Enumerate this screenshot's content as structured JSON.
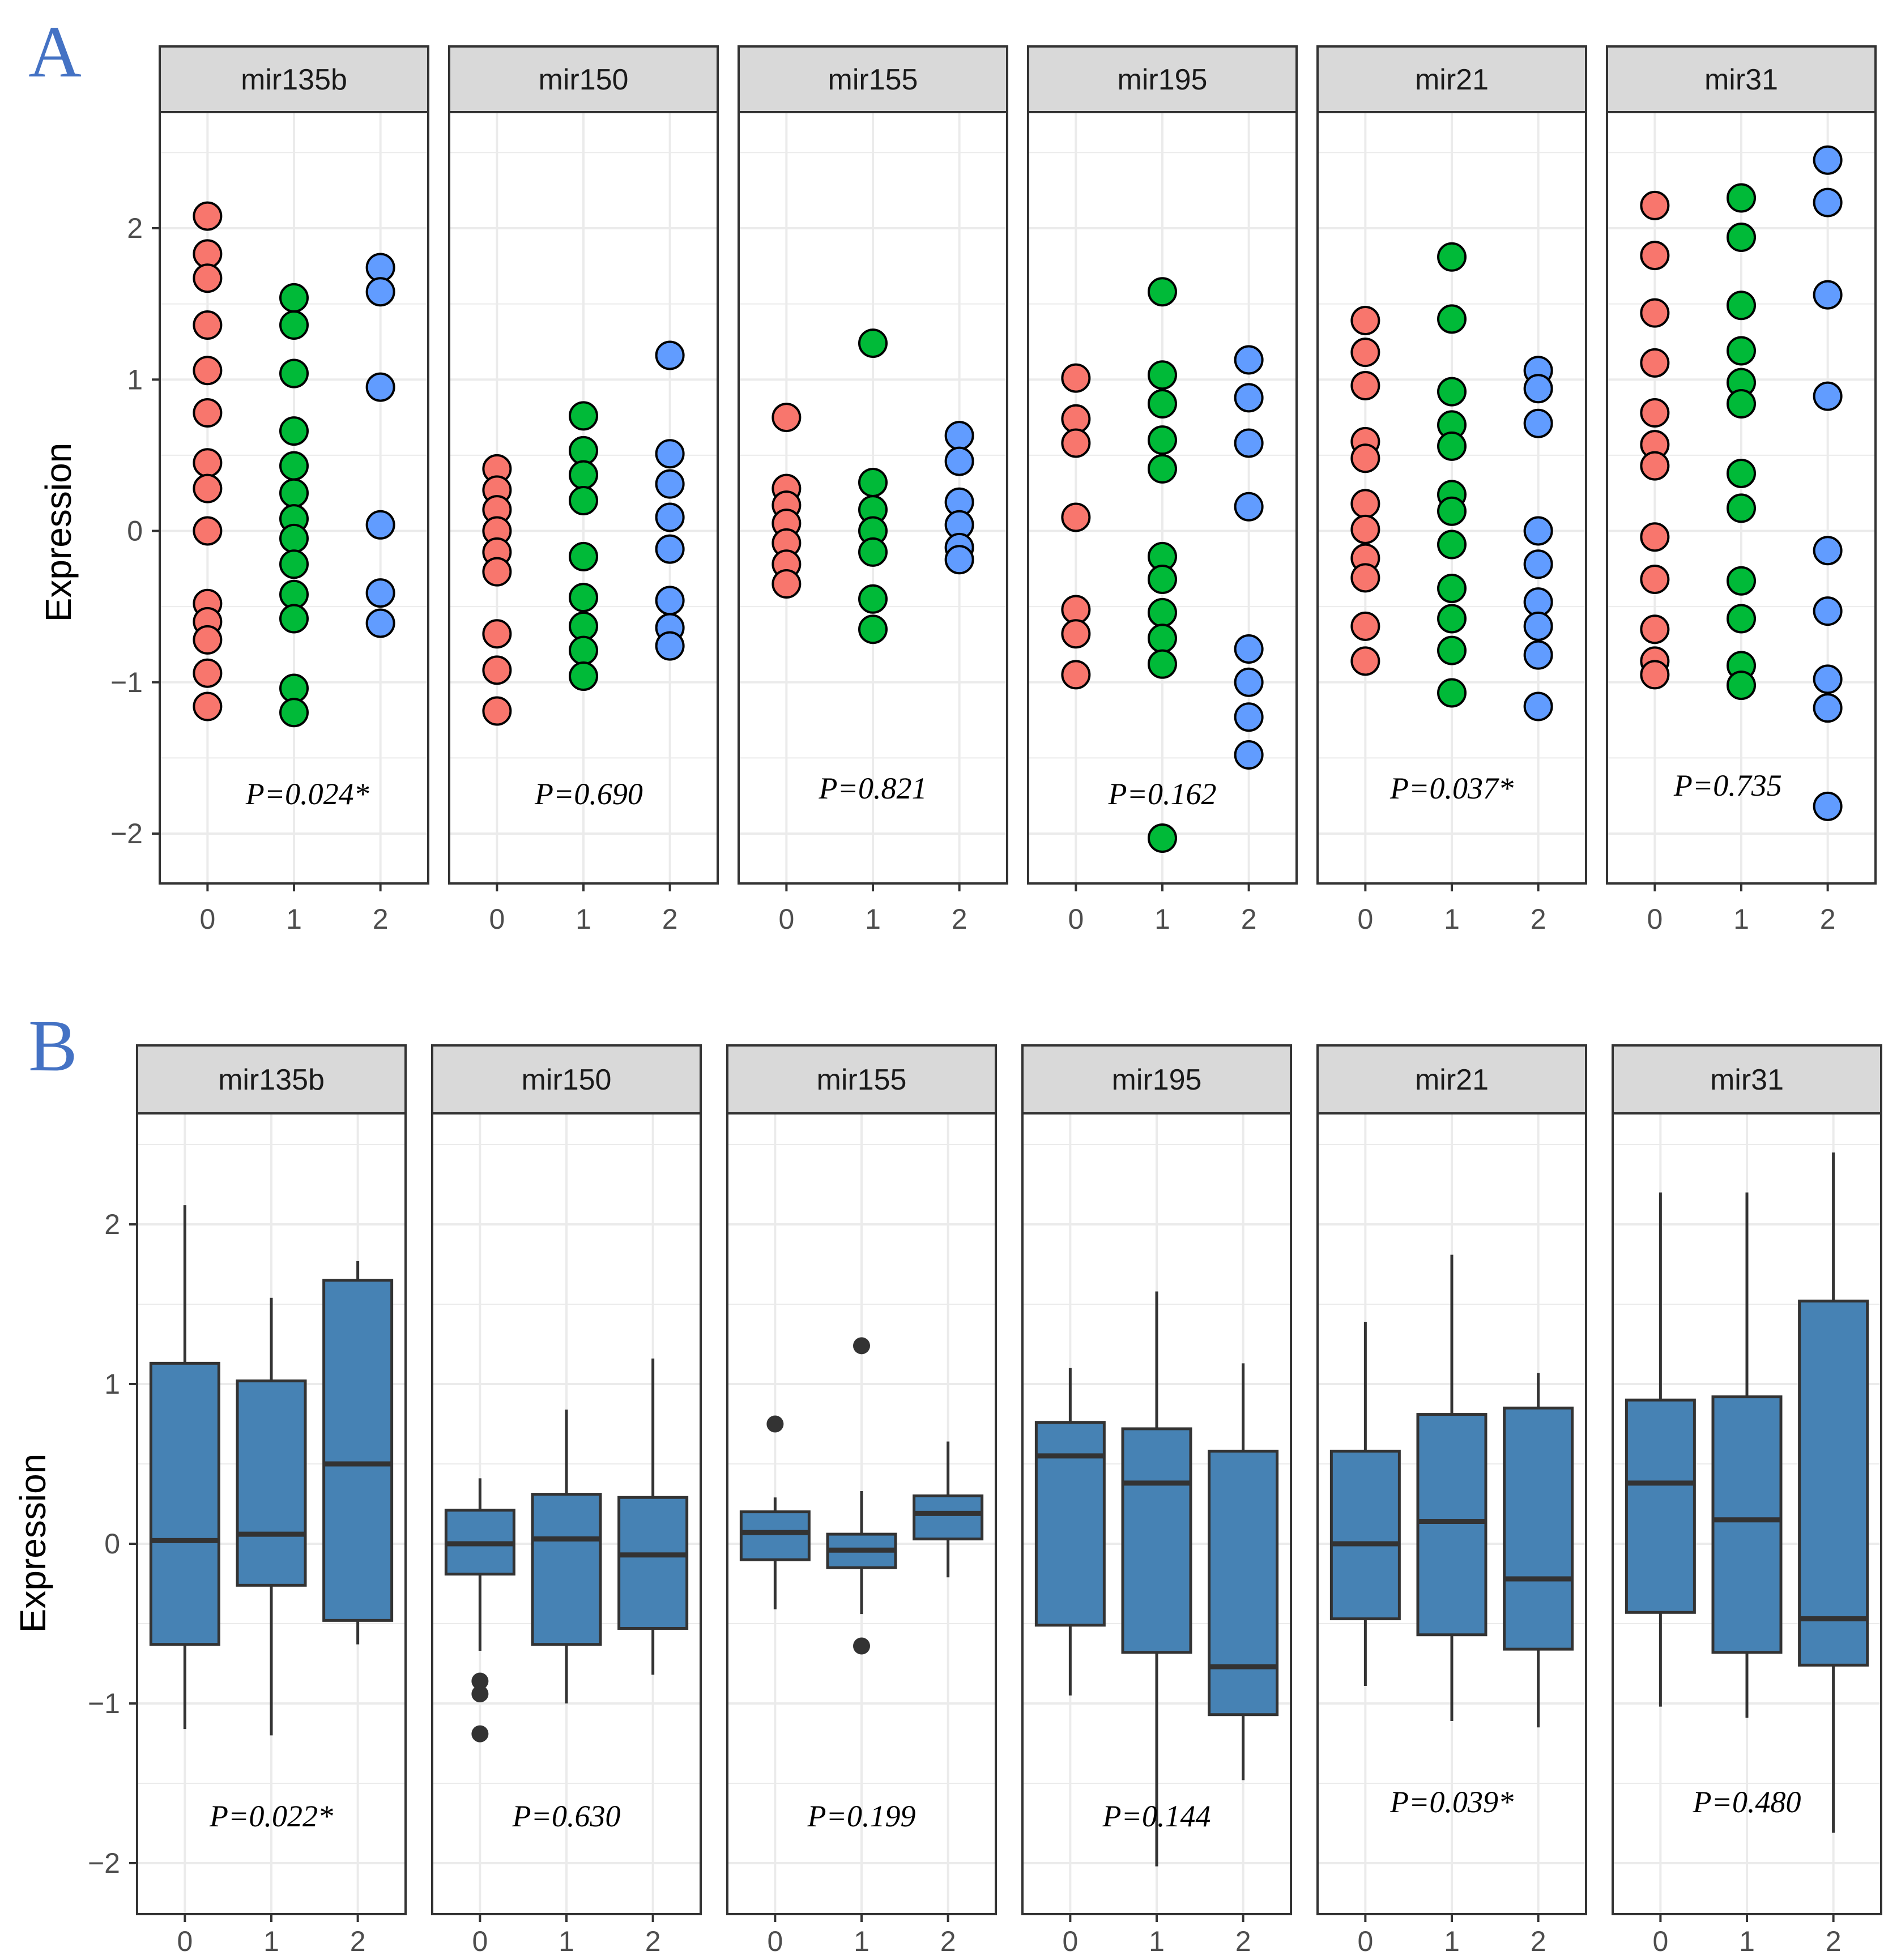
{
  "colors": {
    "group0": "#F8766D",
    "group1": "#00BA38",
    "group2": "#619CFF",
    "box_fill": "#4682B4",
    "strip_fill": "#D9D9D9",
    "grid": "#EBEBEB",
    "outline": "#333333",
    "panel_letter": "#4472C4"
  },
  "chart_data": [
    {
      "panel_label": "A",
      "type": "scatter",
      "subtype": "dotplot",
      "ylabel": "Expression",
      "ylim": [
        -2.3,
        2.7
      ],
      "yticks": [
        "−2",
        "−1",
        "0",
        "1",
        "2"
      ],
      "ytick_values": [
        -2,
        -1,
        0,
        1,
        2
      ],
      "categories": [
        "0",
        "1",
        "2"
      ],
      "facets": [
        {
          "name": "mir135b",
          "p_value": "P=0.024*",
          "groups": [
            [
              2.08,
              1.83,
              1.67,
              1.36,
              1.06,
              0.78,
              0.45,
              0.28,
              0.0,
              -0.48,
              -0.6,
              -0.72,
              -0.94,
              -1.16
            ],
            [
              1.54,
              1.36,
              1.04,
              0.66,
              0.43,
              0.25,
              0.08,
              -0.05,
              -0.22,
              -0.42,
              -0.58,
              -1.04,
              -1.2
            ],
            [
              1.74,
              1.58,
              0.95,
              0.04,
              -0.41,
              -0.61
            ]
          ]
        },
        {
          "name": "mir150",
          "p_value": "P=0.690",
          "groups": [
            [
              0.41,
              0.27,
              0.14,
              0.0,
              -0.14,
              -0.27,
              -0.68,
              -0.92,
              -1.19
            ],
            [
              0.76,
              0.53,
              0.37,
              0.2,
              -0.17,
              -0.44,
              -0.63,
              -0.79,
              -0.96
            ],
            [
              1.16,
              0.51,
              0.31,
              0.09,
              -0.12,
              -0.46,
              -0.64,
              -0.76
            ]
          ]
        },
        {
          "name": "mir155",
          "p_value": "P=0.821",
          "groups": [
            [
              0.75,
              0.28,
              0.17,
              0.05,
              -0.08,
              -0.22,
              -0.35
            ],
            [
              1.24,
              0.32,
              0.14,
              0.0,
              -0.14,
              -0.45,
              -0.65
            ],
            [
              0.63,
              0.46,
              0.19,
              0.04,
              -0.11,
              -0.19
            ]
          ]
        },
        {
          "name": "mir195",
          "p_value": "P=0.162",
          "groups": [
            [
              1.01,
              0.74,
              0.58,
              0.09,
              -0.52,
              -0.68,
              -0.95
            ],
            [
              1.58,
              1.03,
              0.84,
              0.6,
              0.41,
              -0.17,
              -0.32,
              -0.54,
              -0.71,
              -0.88,
              -2.03
            ],
            [
              1.13,
              0.88,
              0.58,
              0.16,
              -0.78,
              -1.0,
              -1.23,
              -1.48
            ]
          ]
        },
        {
          "name": "mir21",
          "p_value": "P=0.037*",
          "groups": [
            [
              1.39,
              1.18,
              0.96,
              0.59,
              0.48,
              0.18,
              0.01,
              -0.18,
              -0.31,
              -0.63,
              -0.86
            ],
            [
              1.81,
              1.4,
              0.92,
              0.7,
              0.56,
              0.24,
              0.13,
              -0.09,
              -0.38,
              -0.58,
              -0.79,
              -1.07
            ],
            [
              1.06,
              0.94,
              0.71,
              0.0,
              -0.22,
              -0.47,
              -0.63,
              -0.82,
              -1.16
            ]
          ]
        },
        {
          "name": "mir31",
          "p_value": "P=0.735",
          "groups": [
            [
              2.15,
              1.82,
              1.44,
              1.11,
              0.78,
              0.57,
              0.43,
              -0.04,
              -0.32,
              -0.65,
              -0.86,
              -0.95
            ],
            [
              2.2,
              1.94,
              1.49,
              1.19,
              0.98,
              0.84,
              0.38,
              0.15,
              -0.33,
              -0.58,
              -0.89,
              -1.02
            ],
            [
              2.45,
              2.17,
              1.56,
              0.89,
              -0.13,
              -0.53,
              -0.98,
              -1.17,
              -1.82
            ]
          ]
        }
      ]
    },
    {
      "panel_label": "B",
      "type": "box",
      "ylabel": "Expression",
      "ylim": [
        -2.3,
        2.7
      ],
      "yticks": [
        "−2",
        "−1",
        "0",
        "1",
        "2"
      ],
      "ytick_values": [
        -2,
        -1,
        0,
        1,
        2
      ],
      "categories": [
        "0",
        "1",
        "2"
      ],
      "facets": [
        {
          "name": "mir135b",
          "p_value": "P=0.022*",
          "boxes": [
            {
              "min": -1.16,
              "q1": -0.63,
              "median": 0.02,
              "q3": 1.13,
              "max": 2.12,
              "outliers": []
            },
            {
              "min": -1.2,
              "q1": -0.26,
              "median": 0.06,
              "q3": 1.02,
              "max": 1.54,
              "outliers": []
            },
            {
              "min": -0.63,
              "q1": -0.48,
              "median": 0.5,
              "q3": 1.65,
              "max": 1.77,
              "outliers": []
            }
          ]
        },
        {
          "name": "mir150",
          "p_value": "P=0.630",
          "boxes": [
            {
              "min": -0.67,
              "q1": -0.19,
              "median": 0.0,
              "q3": 0.21,
              "max": 0.41,
              "outliers": [
                -0.86,
                -0.94,
                -1.19
              ]
            },
            {
              "min": -1.0,
              "q1": -0.63,
              "median": 0.03,
              "q3": 0.31,
              "max": 0.84,
              "outliers": []
            },
            {
              "min": -0.82,
              "q1": -0.53,
              "median": -0.07,
              "q3": 0.29,
              "max": 1.16,
              "outliers": []
            }
          ]
        },
        {
          "name": "mir155",
          "p_value": "P=0.199",
          "boxes": [
            {
              "min": -0.41,
              "q1": -0.1,
              "median": 0.07,
              "q3": 0.2,
              "max": 0.29,
              "outliers": [
                0.75
              ]
            },
            {
              "min": -0.44,
              "q1": -0.15,
              "median": -0.04,
              "q3": 0.06,
              "max": 0.33,
              "outliers": [
                1.24,
                -0.64
              ]
            },
            {
              "min": -0.21,
              "q1": 0.03,
              "median": 0.19,
              "q3": 0.3,
              "max": 0.64,
              "outliers": []
            }
          ]
        },
        {
          "name": "mir195",
          "p_value": "P=0.144",
          "boxes": [
            {
              "min": -0.95,
              "q1": -0.51,
              "median": 0.55,
              "q3": 0.76,
              "max": 1.1,
              "outliers": []
            },
            {
              "min": -2.02,
              "q1": -0.68,
              "median": 0.38,
              "q3": 0.72,
              "max": 1.58,
              "outliers": []
            },
            {
              "min": -1.48,
              "q1": -1.07,
              "median": -0.77,
              "q3": 0.58,
              "max": 1.13,
              "outliers": []
            }
          ]
        },
        {
          "name": "mir21",
          "p_value": "P=0.039*",
          "boxes": [
            {
              "min": -0.89,
              "q1": -0.47,
              "median": 0.0,
              "q3": 0.58,
              "max": 1.39,
              "outliers": []
            },
            {
              "min": -1.11,
              "q1": -0.57,
              "median": 0.14,
              "q3": 0.81,
              "max": 1.81,
              "outliers": []
            },
            {
              "min": -1.15,
              "q1": -0.66,
              "median": -0.22,
              "q3": 0.85,
              "max": 1.07,
              "outliers": []
            }
          ]
        },
        {
          "name": "mir31",
          "p_value": "P=0.480",
          "boxes": [
            {
              "min": -1.02,
              "q1": -0.43,
              "median": 0.38,
              "q3": 0.9,
              "max": 2.2,
              "outliers": []
            },
            {
              "min": -1.09,
              "q1": -0.68,
              "median": 0.15,
              "q3": 0.92,
              "max": 2.2,
              "outliers": []
            },
            {
              "min": -1.81,
              "q1": -0.76,
              "median": -0.47,
              "q3": 1.52,
              "max": 2.45,
              "outliers": []
            }
          ]
        }
      ]
    }
  ]
}
